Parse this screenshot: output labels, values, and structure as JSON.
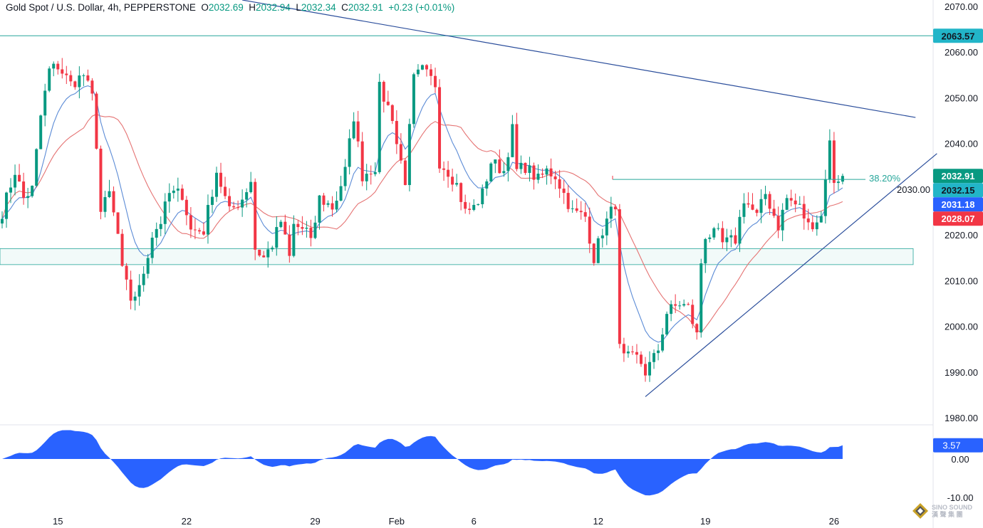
{
  "header": {
    "symbol": "Gold Spot / U.S. Dollar, 4h, PEPPERSTONE",
    "open_label": "O",
    "open": "2032.69",
    "high_label": "H",
    "high": "2032.94",
    "low_label": "L",
    "low": "2032.34",
    "close_label": "C",
    "close": "2032.91",
    "change": "+0.23 (+0.01%)"
  },
  "colors": {
    "up": "#089981",
    "down": "#f23645",
    "ma_fast": "#5b8bd6",
    "ma_slow": "#e57373",
    "trend": "#2a4d9b",
    "level": "#26a69a",
    "osc": "#2962ff"
  },
  "chart_data": {
    "type": "candlestick",
    "title": "Gold Spot / U.S. Dollar, 4h, PEPPERSTONE",
    "ylim": [
      1980,
      2070
    ],
    "y_ticks": [
      2070,
      2060,
      2050,
      2040,
      2030,
      2020,
      2010,
      2000,
      1990,
      1980
    ],
    "y_tick_labels": [
      "2070.00",
      "2060.00",
      "2050.00",
      "2040.00",
      "2030.00",
      "2020.00",
      "2010.00",
      "2000.00",
      "1990.00",
      "1980.00"
    ],
    "x_tick_labels": [
      {
        "label": "15",
        "i": 13
      },
      {
        "label": "22",
        "i": 43
      },
      {
        "label": "29",
        "i": 73
      },
      {
        "label": "Feb",
        "i": 92
      },
      {
        "label": "6",
        "i": 110
      },
      {
        "label": "12",
        "i": 139
      },
      {
        "label": "19",
        "i": 164
      },
      {
        "label": "26",
        "i": 194
      }
    ],
    "close_path": [
      [
        0,
        2025
      ],
      [
        2,
        2031
      ],
      [
        3,
        2034
      ],
      [
        5,
        2028
      ],
      [
        7,
        2030
      ],
      [
        9,
        2046
      ],
      [
        11,
        2056
      ],
      [
        13,
        2057
      ],
      [
        16,
        2053
      ],
      [
        19,
        2055
      ],
      [
        21,
        2050
      ],
      [
        22,
        2040
      ],
      [
        23,
        2025
      ],
      [
        25,
        2029
      ],
      [
        27,
        2020
      ],
      [
        28,
        2012
      ],
      [
        30,
        2006
      ],
      [
        32,
        2008
      ],
      [
        33,
        2012
      ],
      [
        35,
        2020
      ],
      [
        37,
        2023
      ],
      [
        39,
        2029
      ],
      [
        42,
        2029
      ],
      [
        44,
        2021
      ],
      [
        47,
        2021
      ],
      [
        50,
        2034
      ],
      [
        52,
        2028
      ],
      [
        53,
        2025
      ],
      [
        56,
        2028
      ],
      [
        58,
        2032
      ],
      [
        59,
        2017
      ],
      [
        61,
        2015
      ],
      [
        63,
        2018
      ],
      [
        65,
        2023
      ],
      [
        67,
        2015
      ],
      [
        68,
        2022
      ],
      [
        71,
        2021
      ],
      [
        72,
        2018
      ],
      [
        74,
        2028
      ],
      [
        77,
        2026
      ],
      [
        78,
        2028
      ],
      [
        80,
        2034
      ],
      [
        82,
        2046
      ],
      [
        84,
        2033
      ],
      [
        87,
        2035
      ],
      [
        88,
        2052
      ],
      [
        91,
        2046
      ],
      [
        92,
        2040
      ],
      [
        94,
        2032
      ],
      [
        96,
        2054
      ],
      [
        98,
        2056
      ],
      [
        101,
        2053
      ],
      [
        102,
        2036
      ],
      [
        104,
        2034
      ],
      [
        106,
        2031
      ],
      [
        108,
        2025
      ],
      [
        110,
        2026
      ],
      [
        112,
        2029
      ],
      [
        114,
        2036
      ],
      [
        117,
        2034
      ],
      [
        119,
        2043
      ],
      [
        120,
        2034
      ],
      [
        122,
        2035
      ],
      [
        125,
        2032
      ],
      [
        127,
        2034
      ],
      [
        129,
        2033
      ],
      [
        131,
        2029
      ],
      [
        133,
        2025
      ],
      [
        136,
        2024
      ],
      [
        138,
        2015
      ],
      [
        140,
        2021
      ],
      [
        142,
        2025
      ],
      [
        143,
        2027
      ],
      [
        144,
        1995
      ],
      [
        145,
        1993
      ],
      [
        148,
        1993
      ],
      [
        149,
        1992
      ],
      [
        150,
        1990
      ],
      [
        152,
        1993
      ],
      [
        153,
        1995
      ],
      [
        155,
        2003
      ],
      [
        158,
        2005
      ],
      [
        160,
        2004
      ],
      [
        162,
        1998
      ],
      [
        163,
        2014
      ],
      [
        164,
        2020
      ],
      [
        167,
        2020
      ],
      [
        168,
        2018
      ],
      [
        171,
        2019
      ],
      [
        173,
        2028
      ],
      [
        176,
        2024
      ],
      [
        178,
        2029
      ],
      [
        181,
        2022
      ],
      [
        183,
        2028
      ],
      [
        186,
        2026
      ],
      [
        188,
        2022
      ],
      [
        191,
        2024
      ],
      [
        192,
        2033
      ],
      [
        193,
        2040
      ],
      [
        194,
        2032
      ],
      [
        196,
        2032.91
      ]
    ],
    "indicators": {
      "ma_fast_period": 9,
      "ma_slow_period": 20,
      "ma_fast_last": 2031.18,
      "ma_slow_last": 2028.07
    },
    "horizontal_level": 2063.57,
    "support_zone": [
      2013.5,
      2017
    ],
    "fib_level": {
      "label": "38.20%",
      "price": 2032.15
    },
    "trendlines": [
      {
        "name": "descending",
        "from": [
          56,
          2071.4
        ],
        "to": [
          213,
          2045.7
        ]
      },
      {
        "name": "ascending",
        "from": [
          150,
          1984.6
        ],
        "to": [
          218,
          2037.8
        ]
      }
    ],
    "oscillator": {
      "ylim": [
        -11,
        9
      ],
      "y_tick_labels": [
        "0.00",
        "-10.00"
      ],
      "y_ticks": [
        0,
        -10
      ],
      "last_value": 3.57
    }
  },
  "price_labels": [
    {
      "text": "2063.57",
      "price": 2063.57,
      "bg": "#22b5c8",
      "fg": "#131722"
    },
    {
      "text": "2032.91",
      "price": 2032.91,
      "bg": "#089981",
      "fg": "#ffffff"
    },
    {
      "text": "2032.15",
      "price": 2032.15,
      "bg": "#22b5c8",
      "fg": "#131722"
    },
    {
      "text": "2031.18",
      "price": 2031.18,
      "bg": "#2962ff",
      "fg": "#ffffff"
    },
    {
      "text": "2028.07",
      "price": 2028.07,
      "bg": "#f23645",
      "fg": "#ffffff"
    }
  ],
  "osc_label": "3.57",
  "watermark": {
    "line1": "SINO SOUND",
    "line2": "漢 聲 集 團"
  }
}
